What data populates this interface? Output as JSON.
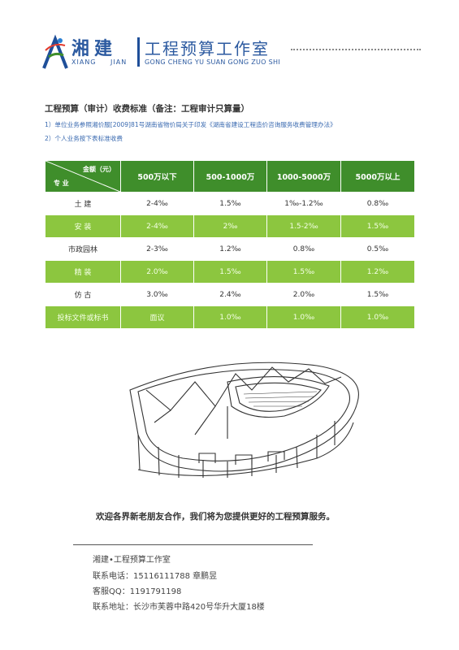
{
  "header": {
    "brand_cn": "湘建",
    "brand_en": "XIANG JIAN",
    "studio_cn": "工程预算工作室",
    "studio_en": "GONG CHENG YU SUAN GONG ZUO SHI"
  },
  "section": {
    "title": "工程预算（审计）收费标准（备注：工程审计只算量）",
    "note1": "1）单位业务参照湘价服[2009]81号湖南省物价局关于印发《湖南省建设工程造价咨询服务收费管理办法》",
    "note2": "2）个人业务按下表标准收费"
  },
  "table": {
    "corner_top": "金额（元）",
    "corner_bottom": "专 业",
    "columns": [
      "500万以下",
      "500-1000万",
      "1000-5000万",
      "5000万以上"
    ],
    "rows": [
      {
        "name": "土 建",
        "values": [
          "2-4‰",
          "1.5‰",
          "1‰-1.2‰",
          "0.8‰"
        ]
      },
      {
        "name": "安 装",
        "values": [
          "2-4‰",
          "2‰",
          "1.5-2‰",
          "1.5‰"
        ]
      },
      {
        "name": "市政园林",
        "values": [
          "2-3‰",
          "1.2‰",
          "0.8‰",
          "0.5‰"
        ]
      },
      {
        "name": "精 装",
        "values": [
          "2.0‰",
          "1.5‰",
          "1.5‰",
          "1.2‰"
        ]
      },
      {
        "name": "仿 古",
        "values": [
          "3.0‰",
          "2.4‰",
          "2.0‰",
          "1.5‰"
        ]
      },
      {
        "name": "投标文件或标书",
        "values": [
          "面议",
          "1.0‰",
          "1.0‰",
          "1.0‰"
        ]
      }
    ],
    "header_color": "#3f8e2b",
    "stripe_color": "#8cc63f"
  },
  "welcome": "欢迎各界新老朋友合作，我们将为您提供更好的工程预算服务。",
  "contact": {
    "name": "湘建•工程预算工作室",
    "phone": "联系电话：15116111788 章鹏昱",
    "qq": "客服QQ：1191791198",
    "address": "联系地址：长沙市芙蓉中路420号华升大厦18楼"
  }
}
